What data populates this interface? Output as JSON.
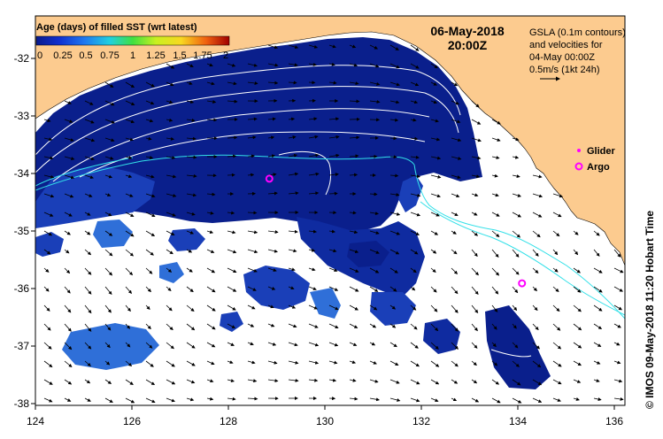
{
  "map": {
    "date": "06-May-2018",
    "time": "20:00Z",
    "credit": "© IMOS 09-May-2018 11:20 Hobart Time",
    "x_ticks": [
      "124",
      "126",
      "128",
      "130",
      "132",
      "134",
      "136"
    ],
    "y_ticks": [
      "-32",
      "-33",
      "-34",
      "-35",
      "-36",
      "-37",
      "-38"
    ],
    "lon_range": [
      124,
      136.6
    ],
    "lat_range": [
      -38.1,
      -31.4
    ],
    "colors": {
      "land": "#fccb8f",
      "sst_deep": "#0a1f8c",
      "sst_mid": "#1a3fb8",
      "sst_light": "#2f6fd8",
      "contour": "#ffffff",
      "cyan": "#33e0e8",
      "marker": "#ff00ff"
    }
  },
  "legend": {
    "title": "Age (days) of filled SST (wrt latest)",
    "ticks": [
      "0",
      "0.25",
      "0.5",
      "0.75",
      "1",
      "1.25",
      "1.5",
      "1.75",
      "2"
    ]
  },
  "gsla": {
    "lines": [
      "GSLA (0.1m contours)",
      "and velocities for",
      "04-May 00:00Z",
      "0.5m/s (1kt 24h)"
    ]
  },
  "markers": {
    "glider_label": "Glider",
    "argo_label": "Argo",
    "argo_positions": [
      {
        "lon": 129.0,
        "lat": -34.2
      },
      {
        "lon": 134.4,
        "lat": -36.0
      }
    ]
  }
}
